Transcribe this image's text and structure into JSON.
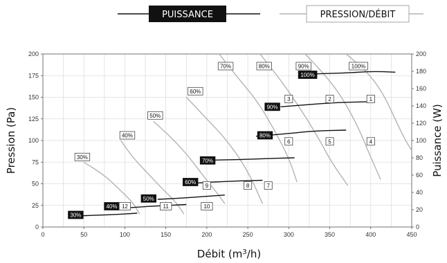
{
  "chart_data": {
    "type": "line",
    "legend": {
      "placement": "top-center",
      "power_label": "PUISSANCE",
      "pressure_label": "PRESSION/DÉBIT"
    },
    "xlabel_prefix": "Débit (m",
    "xlabel_sup": "3",
    "xlabel_suffix": "/h)",
    "ylabel_left": "Pression (Pa)",
    "ylabel_right": "Puissance (W)",
    "x_range": [
      0,
      450
    ],
    "y_left_range": [
      0,
      200
    ],
    "y_right_range": [
      0,
      200
    ],
    "x_ticks": [
      "0",
      "50",
      "100",
      "150",
      "200",
      "250",
      "300",
      "350",
      "400",
      "450"
    ],
    "y_left_ticks": [
      "0",
      "25",
      "50",
      "75",
      "100",
      "125",
      "150",
      "175",
      "200"
    ],
    "y_right_ticks": [
      "0",
      "20",
      "40",
      "60",
      "80",
      "100",
      "120",
      "140",
      "160",
      "180",
      "200"
    ],
    "grid": true,
    "colors": {
      "power": "#111111",
      "pressure": "#b3b3b3",
      "grid": "#dddddd"
    },
    "pressure_series": [
      {
        "name": "30%",
        "points": [
          [
            50,
            75
          ],
          [
            75,
            60
          ],
          [
            95,
            42
          ],
          [
            110,
            28
          ],
          [
            118,
            15
          ]
        ]
      },
      {
        "name": "40%",
        "points": [
          [
            95,
            100
          ],
          [
            110,
            80
          ],
          [
            130,
            60
          ],
          [
            148,
            42
          ],
          [
            163,
            28
          ],
          [
            172,
            15
          ]
        ]
      },
      {
        "name": "50%",
        "points": [
          [
            135,
            122
          ],
          [
            155,
            105
          ],
          [
            175,
            85
          ],
          [
            195,
            60
          ],
          [
            212,
            40
          ],
          [
            222,
            27
          ]
        ]
      },
      {
        "name": "60%",
        "points": [
          [
            175,
            150
          ],
          [
            200,
            125
          ],
          [
            220,
            105
          ],
          [
            240,
            80
          ],
          [
            255,
            55
          ],
          [
            268,
            27
          ]
        ]
      },
      {
        "name": "70%",
        "points": [
          [
            215,
            200
          ],
          [
            240,
            170
          ],
          [
            262,
            145
          ],
          [
            282,
            113
          ],
          [
            300,
            80
          ],
          [
            310,
            52
          ]
        ]
      },
      {
        "name": "80%",
        "points": [
          [
            265,
            200
          ],
          [
            290,
            170
          ],
          [
            312,
            140
          ],
          [
            335,
            105
          ],
          [
            352,
            75
          ],
          [
            372,
            48
          ]
        ]
      },
      {
        "name": "90%",
        "points": [
          [
            320,
            200
          ],
          [
            345,
            175
          ],
          [
            365,
            150
          ],
          [
            385,
            115
          ],
          [
            398,
            85
          ],
          [
            412,
            55
          ]
        ]
      },
      {
        "name": "100%",
        "points": [
          [
            370,
            200
          ],
          [
            395,
            180
          ],
          [
            415,
            155
          ],
          [
            432,
            120
          ],
          [
            445,
            95
          ],
          [
            460,
            75
          ]
        ]
      }
    ],
    "power_series": [
      {
        "name": "30%",
        "points": [
          [
            45,
            13
          ],
          [
            80,
            14
          ],
          [
            115,
            16
          ]
        ]
      },
      {
        "name": "40%",
        "points": [
          [
            85,
            21
          ],
          [
            130,
            24
          ],
          [
            175,
            26
          ]
        ]
      },
      {
        "name": "50%",
        "points": [
          [
            140,
            32
          ],
          [
            180,
            34
          ],
          [
            222,
            37
          ]
        ]
      },
      {
        "name": "60%",
        "points": [
          [
            188,
            51
          ],
          [
            230,
            53
          ],
          [
            268,
            54
          ]
        ]
      },
      {
        "name": "70%",
        "points": [
          [
            195,
            77
          ],
          [
            240,
            78
          ],
          [
            270,
            79
          ],
          [
            307,
            80
          ]
        ]
      },
      {
        "name": "80%",
        "points": [
          [
            260,
            105
          ],
          [
            300,
            108
          ],
          [
            330,
            111
          ],
          [
            370,
            112
          ]
        ]
      },
      {
        "name": "90%",
        "points": [
          [
            290,
            139
          ],
          [
            330,
            142
          ],
          [
            360,
            144
          ],
          [
            405,
            145
          ]
        ]
      },
      {
        "name": "100%",
        "points": [
          [
            330,
            177
          ],
          [
            370,
            178
          ],
          [
            400,
            180
          ],
          [
            430,
            179
          ]
        ]
      }
    ],
    "pressure_labels": [
      {
        "text": "30%",
        "x": 48,
        "y": 81
      },
      {
        "text": "40%",
        "x": 103,
        "y": 106
      },
      {
        "text": "50%",
        "x": 137,
        "y": 129
      },
      {
        "text": "60%",
        "x": 186,
        "y": 157
      },
      {
        "text": "70%",
        "x": 223,
        "y": 186
      },
      {
        "text": "80%",
        "x": 270,
        "y": 186
      },
      {
        "text": "90%",
        "x": 318,
        "y": 186
      },
      {
        "text": "100%",
        "x": 385,
        "y": 186
      }
    ],
    "power_labels": [
      {
        "text": "30%",
        "x": 40,
        "y": 14
      },
      {
        "text": "40%",
        "x": 84,
        "y": 24
      },
      {
        "text": "50%",
        "x": 129,
        "y": 33
      },
      {
        "text": "60%",
        "x": 180,
        "y": 52
      },
      {
        "text": "70%",
        "x": 201,
        "y": 77
      },
      {
        "text": "80%",
        "x": 271,
        "y": 106
      },
      {
        "text": "90%",
        "x": 280,
        "y": 139
      },
      {
        "text": "100%",
        "x": 323,
        "y": 176
      }
    ],
    "operating_points": [
      {
        "text": "1",
        "x": 400,
        "y": 148
      },
      {
        "text": "2",
        "x": 350,
        "y": 148
      },
      {
        "text": "3",
        "x": 300,
        "y": 148
      },
      {
        "text": "4",
        "x": 400,
        "y": 99
      },
      {
        "text": "5",
        "x": 350,
        "y": 99
      },
      {
        "text": "6",
        "x": 300,
        "y": 99
      },
      {
        "text": "7",
        "x": 275,
        "y": 48
      },
      {
        "text": "8",
        "x": 250,
        "y": 48
      },
      {
        "text": "9",
        "x": 200,
        "y": 48
      },
      {
        "text": "10",
        "x": 200,
        "y": 24
      },
      {
        "text": "11",
        "x": 150,
        "y": 24
      },
      {
        "text": "12",
        "x": 100,
        "y": 24
      }
    ]
  }
}
